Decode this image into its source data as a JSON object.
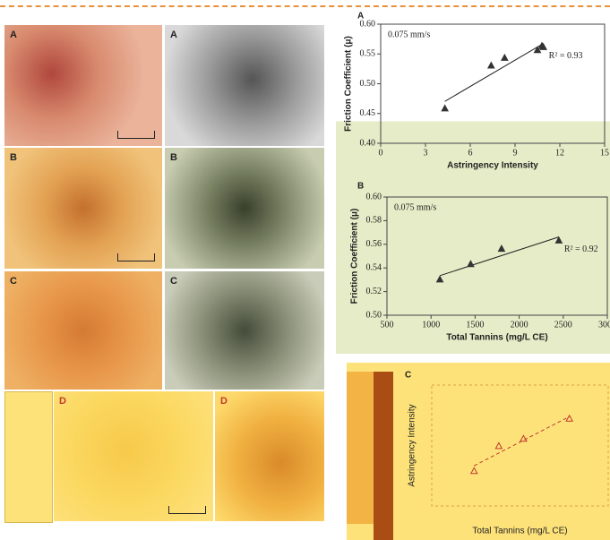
{
  "panels": [
    {
      "label": "A"
    },
    {
      "label": "A"
    },
    {
      "label": "B"
    },
    {
      "label": "B"
    },
    {
      "label": "C"
    },
    {
      "label": "C"
    },
    {
      "label": "D"
    },
    {
      "label": "D"
    }
  ],
  "chart_data": [
    {
      "type": "scatter",
      "title": "A",
      "annotation": "0.075 mm/s",
      "r2_label": "R² = 0.93",
      "xlabel": "Astringency Intensity",
      "ylabel": "Friction Coefficient (μ)",
      "x": [
        4.3,
        7.4,
        8.3,
        10.5,
        10.8,
        10.9
      ],
      "values": [
        0.458,
        0.53,
        0.543,
        0.556,
        0.563,
        0.561
      ],
      "color": "#333333",
      "xlim": [
        0,
        15
      ],
      "xticks": [
        0,
        3,
        6,
        9,
        12,
        15
      ],
      "ylim": [
        0.4,
        0.6
      ],
      "yticks": [
        {
          "value": 0.4,
          "label": "0.40"
        },
        {
          "value": 0.45,
          "label": "0.45"
        },
        {
          "value": 0.5,
          "label": "0.50"
        },
        {
          "value": 0.55,
          "label": "0.55"
        },
        {
          "value": 0.6,
          "label": "0.60"
        }
      ]
    },
    {
      "type": "scatter",
      "title": "B",
      "annotation": "0.075 mm/s",
      "r2_label": "R² = 0.92",
      "xlabel": "Total Tannins (mg/L CE)",
      "ylabel": "Friction Coefficient (μ)",
      "x": [
        1100,
        1450,
        1800,
        2450
      ],
      "values": [
        0.53,
        0.543,
        0.556,
        0.563
      ],
      "color": "#333333",
      "xlim": [
        500,
        3000
      ],
      "xticks": [
        500,
        1000,
        1500,
        2000,
        2500,
        3000
      ],
      "ylim": [
        0.5,
        0.6
      ],
      "yticks": [
        {
          "value": 0.5,
          "label": "0.50"
        },
        {
          "value": 0.52,
          "label": "0.52"
        },
        {
          "value": 0.54,
          "label": "0.54"
        },
        {
          "value": 0.56,
          "label": "0.56"
        },
        {
          "value": 0.58,
          "label": "0.58"
        },
        {
          "value": 0.6,
          "label": "0.60"
        }
      ]
    },
    {
      "type": "scatter",
      "title": "C",
      "xlabel": "Total Tannins (mg/L CE)",
      "ylabel": "Astringency Intensity",
      "x": [
        1100,
        1450,
        1800,
        2450
      ],
      "values": [
        4.3,
        7.4,
        8.3,
        10.8
      ],
      "color": "#c0392b",
      "xlim": [
        500,
        3000
      ],
      "ylim": [
        0,
        15
      ]
    }
  ]
}
